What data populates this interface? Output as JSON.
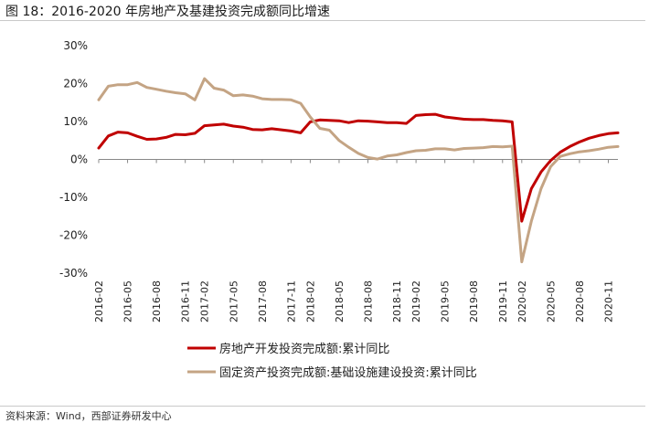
{
  "figure": {
    "title": "图 18：2016-2020 年房地产及基建投资完成额同比增速",
    "source": "资料来源：Wind，西部证券研发中心"
  },
  "chart_data": {
    "type": "line",
    "title": "",
    "xlabel": "",
    "ylabel": "",
    "ylim": [
      -0.3,
      0.3
    ],
    "yticks": [
      0.3,
      0.2,
      0.1,
      0.0,
      -0.1,
      -0.2,
      -0.3
    ],
    "ytick_labels": [
      "30%",
      "20%",
      "10%",
      "0%",
      "-10%",
      "-20%",
      "-30%"
    ],
    "grid": false,
    "legend_position": "bottom",
    "x": [
      "2016-02",
      "2016-03",
      "2016-04",
      "2016-05",
      "2016-06",
      "2016-07",
      "2016-08",
      "2016-09",
      "2016-10",
      "2016-11",
      "2016-12",
      "2017-02",
      "2017-03",
      "2017-04",
      "2017-05",
      "2017-06",
      "2017-07",
      "2017-08",
      "2017-09",
      "2017-10",
      "2017-11",
      "2017-12",
      "2018-02",
      "2018-03",
      "2018-04",
      "2018-05",
      "2018-06",
      "2018-07",
      "2018-08",
      "2018-09",
      "2018-10",
      "2018-11",
      "2018-12",
      "2019-02",
      "2019-03",
      "2019-04",
      "2019-05",
      "2019-06",
      "2019-07",
      "2019-08",
      "2019-09",
      "2019-10",
      "2019-11",
      "2019-12",
      "2020-02",
      "2020-03",
      "2020-04",
      "2020-05",
      "2020-06",
      "2020-07",
      "2020-08",
      "2020-09",
      "2020-10",
      "2020-11",
      "2020-12"
    ],
    "xtick_labels": [
      "2016-02",
      "2016-05",
      "2016-08",
      "2016-11",
      "2017-02",
      "2017-05",
      "2017-08",
      "2017-11",
      "2018-02",
      "2018-05",
      "2018-08",
      "2018-11",
      "2019-02",
      "2019-05",
      "2019-08",
      "2019-11",
      "2020-02",
      "2020-05",
      "2020-08",
      "2020-11"
    ],
    "series": [
      {
        "name": "房地产开发投资完成额:累计同比",
        "color": "#c00000",
        "values": [
          0.03,
          0.062,
          0.072,
          0.07,
          0.061,
          0.053,
          0.054,
          0.058,
          0.066,
          0.065,
          0.069,
          0.089,
          0.091,
          0.093,
          0.088,
          0.085,
          0.079,
          0.078,
          0.081,
          0.078,
          0.075,
          0.07,
          0.099,
          0.104,
          0.103,
          0.102,
          0.097,
          0.102,
          0.101,
          0.099,
          0.097,
          0.097,
          0.095,
          0.116,
          0.118,
          0.119,
          0.112,
          0.109,
          0.106,
          0.105,
          0.105,
          0.103,
          0.102,
          0.099,
          -0.163,
          -0.077,
          -0.033,
          -0.003,
          0.019,
          0.034,
          0.046,
          0.056,
          0.063,
          0.068,
          0.07
        ]
      },
      {
        "name": "固定资产投资完成额:基础设施建设投资:累计同比",
        "color": "#c4a484",
        "values": [
          0.157,
          0.193,
          0.197,
          0.197,
          0.203,
          0.19,
          0.185,
          0.18,
          0.176,
          0.173,
          0.157,
          0.213,
          0.188,
          0.183,
          0.168,
          0.17,
          0.167,
          0.16,
          0.158,
          0.158,
          0.157,
          0.148,
          0.112,
          0.082,
          0.077,
          0.05,
          0.032,
          0.016,
          0.005,
          0.001,
          0.009,
          0.012,
          0.018,
          0.023,
          0.024,
          0.028,
          0.028,
          0.025,
          0.029,
          0.03,
          0.031,
          0.034,
          0.033,
          0.035,
          -0.27,
          -0.163,
          -0.077,
          -0.019,
          0.008,
          0.015,
          0.02,
          0.023,
          0.027,
          0.032,
          0.034
        ]
      }
    ]
  }
}
